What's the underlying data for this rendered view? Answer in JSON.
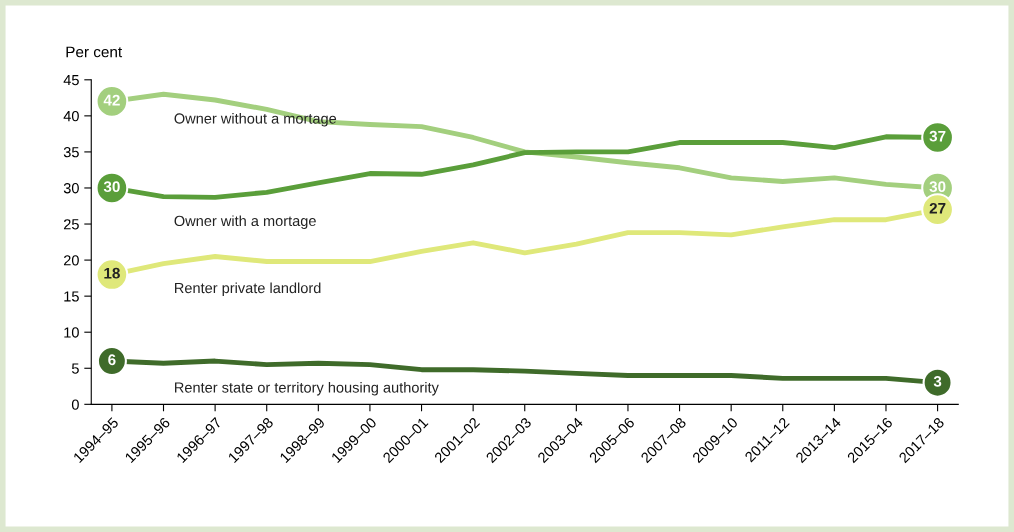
{
  "chart_data": {
    "type": "line",
    "ylabel": "Per cent",
    "categories": [
      "1994–95",
      "1995–96",
      "1996–97",
      "1997–98",
      "1998–99",
      "1999–00",
      "2000–01",
      "2001–02",
      "2002–03",
      "2003–04",
      "2005–06",
      "2007–08",
      "2009–10",
      "2011–12",
      "2013–14",
      "2015–16",
      "2017–18"
    ],
    "ylim": [
      0,
      45
    ],
    "yticks": [
      0,
      5,
      10,
      15,
      20,
      25,
      30,
      35,
      40,
      45
    ],
    "grid": false,
    "legend": false,
    "series": [
      {
        "name": "Owner without a mortage",
        "color": "#a3cf7e",
        "values": [
          42,
          43,
          42.2,
          40.9,
          39.2,
          38.8,
          38.5,
          37,
          35,
          34.3,
          33.5,
          32.8,
          31.4,
          30.9,
          31.4,
          30.5,
          30
        ],
        "value_labels": [
          "42",
          null,
          null,
          null,
          null,
          null,
          null,
          null,
          null,
          null,
          null,
          null,
          null,
          null,
          null,
          null,
          "30"
        ]
      },
      {
        "name": "Owner with a mortage",
        "color": "#5a9e3a",
        "values": [
          30,
          28.8,
          28.7,
          29.4,
          30.7,
          32,
          31.9,
          33.2,
          34.9,
          35,
          35,
          36.3,
          36.3,
          36.3,
          35.6,
          37.1,
          37
        ],
        "value_labels": [
          "30",
          null,
          null,
          null,
          null,
          null,
          null,
          null,
          null,
          null,
          null,
          null,
          null,
          null,
          null,
          null,
          "37"
        ]
      },
      {
        "name": "Renter private landlord",
        "color": "#dfe87a",
        "values": [
          18,
          19.5,
          20.5,
          19.8,
          19.8,
          19.8,
          21.2,
          22.4,
          21,
          22.2,
          23.8,
          23.8,
          23.5,
          24.6,
          25.6,
          25.6,
          27
        ],
        "value_labels": [
          "18",
          null,
          null,
          null,
          null,
          null,
          null,
          null,
          null,
          null,
          null,
          null,
          null,
          null,
          null,
          null,
          "27"
        ]
      },
      {
        "name": "Renter state or territory housing authority",
        "color": "#3f6b2a",
        "values": [
          6,
          5.7,
          6,
          5.5,
          5.7,
          5.5,
          4.8,
          4.8,
          4.6,
          4.3,
          4,
          4,
          4,
          3.6,
          3.6,
          3.6,
          3
        ],
        "value_labels": [
          "6",
          null,
          null,
          null,
          null,
          null,
          null,
          null,
          null,
          null,
          null,
          null,
          null,
          null,
          null,
          null,
          "3"
        ]
      }
    ]
  }
}
